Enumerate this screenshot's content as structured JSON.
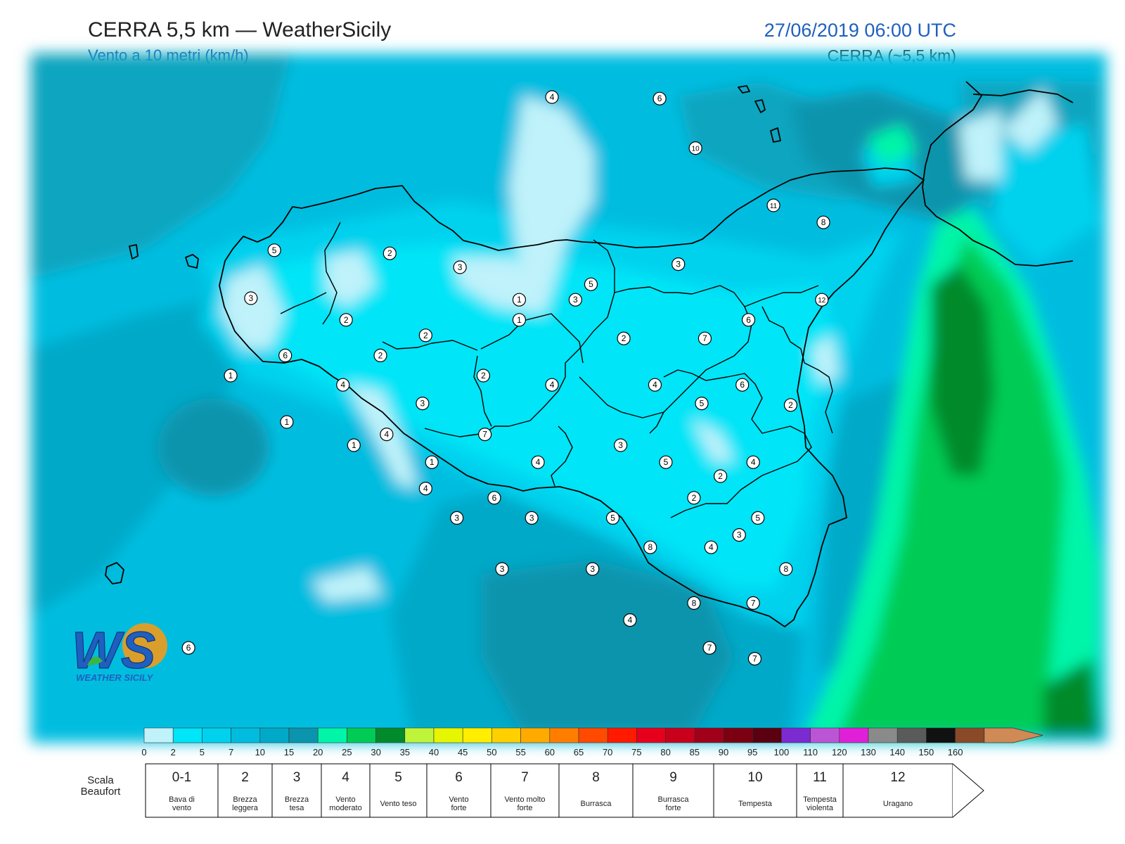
{
  "header": {
    "title": "CERRA 5,5 km — WeatherSicily",
    "subtitle": "Vento a 10 metri (km/h)",
    "datetime": "27/06/2019 06:00 UTC",
    "model": "CERRA (~5,5 km)"
  },
  "logo": {
    "text": "WEATHER SICILY",
    "letters": "WS"
  },
  "colors": {
    "c0": "#bff2fa",
    "c2": "#00e5f7",
    "c5": "#00d2ee",
    "c7": "#00bde0",
    "c10": "#00a9c8",
    "c15": "#0a94ad",
    "c20": "#00f5a8",
    "c25": "#00cc55",
    "c30": "#008a2c"
  },
  "legend": {
    "ticks": [
      "0",
      "2",
      "5",
      "7",
      "10",
      "15",
      "20",
      "25",
      "30",
      "35",
      "40",
      "45",
      "50",
      "55",
      "60",
      "65",
      "70",
      "75",
      "80",
      "85",
      "90",
      "95",
      "100",
      "110",
      "120",
      "130",
      "140",
      "150",
      "160"
    ],
    "bins": [
      "#bff2fa",
      "#00e5f7",
      "#00d2ee",
      "#00bde0",
      "#00a9c8",
      "#0a94ad",
      "#00f5a8",
      "#00cc55",
      "#008a2c",
      "#bef53a",
      "#e6f500",
      "#ffee00",
      "#ffd000",
      "#ffaa00",
      "#ff7e00",
      "#ff4a00",
      "#ff1a00",
      "#e6001c",
      "#c8001c",
      "#a0001a",
      "#7a0012",
      "#5a0010",
      "#7b2bd0",
      "#bb55d6",
      "#e020d8",
      "#8a8a8a",
      "#5a5a5a",
      "#111111",
      "#8a4a28",
      "#cf8a55"
    ],
    "scale_label_1": "Scala",
    "scale_label_2": "Beaufort",
    "beaufort": [
      {
        "num": "0-1",
        "l1": "Bava di",
        "l2": "vento"
      },
      {
        "num": "2",
        "l1": "Brezza",
        "l2": "leggera"
      },
      {
        "num": "3",
        "l1": "Brezza",
        "l2": "tesa"
      },
      {
        "num": "4",
        "l1": "Vento",
        "l2": "moderato"
      },
      {
        "num": "5",
        "l1": "Vento teso",
        "l2": ""
      },
      {
        "num": "6",
        "l1": "Vento",
        "l2": "forte"
      },
      {
        "num": "7",
        "l1": "Vento molto",
        "l2": "forte"
      },
      {
        "num": "8",
        "l1": "Burrasca",
        "l2": ""
      },
      {
        "num": "9",
        "l1": "Burrasca",
        "l2": "forte"
      },
      {
        "num": "10",
        "l1": "Tempesta",
        "l2": ""
      },
      {
        "num": "11",
        "l1": "Tempesta",
        "l2": "violenta"
      },
      {
        "num": "12",
        "l1": "Uragano",
        "l2": ""
      }
    ]
  },
  "stations": [
    {
      "v": "4",
      "lon": 14.26,
      "lat": 39.25
    },
    {
      "v": "6",
      "lon": 14.95,
      "lat": 39.24
    },
    {
      "v": "10",
      "lon": 15.18,
      "lat": 38.92
    },
    {
      "v": "11",
      "lon": 15.68,
      "lat": 38.55
    },
    {
      "v": "8",
      "lon": 16.0,
      "lat": 38.44
    },
    {
      "v": "5",
      "lon": 12.48,
      "lat": 38.26
    },
    {
      "v": "2",
      "lon": 13.22,
      "lat": 38.24
    },
    {
      "v": "3",
      "lon": 13.67,
      "lat": 38.15
    },
    {
      "v": "3",
      "lon": 15.07,
      "lat": 38.17
    },
    {
      "v": "5",
      "lon": 14.51,
      "lat": 38.04
    },
    {
      "v": "3",
      "lon": 12.33,
      "lat": 37.95
    },
    {
      "v": "1",
      "lon": 14.05,
      "lat": 37.94
    },
    {
      "v": "3",
      "lon": 14.41,
      "lat": 37.94
    },
    {
      "v": "12",
      "lon": 15.99,
      "lat": 37.94
    },
    {
      "v": "2",
      "lon": 12.94,
      "lat": 37.81
    },
    {
      "v": "1",
      "lon": 14.05,
      "lat": 37.81
    },
    {
      "v": "6",
      "lon": 15.52,
      "lat": 37.81
    },
    {
      "v": "2",
      "lon": 13.45,
      "lat": 37.71
    },
    {
      "v": "2",
      "lon": 14.72,
      "lat": 37.69
    },
    {
      "v": "7",
      "lon": 15.24,
      "lat": 37.69
    },
    {
      "v": "6",
      "lon": 12.55,
      "lat": 37.58
    },
    {
      "v": "2",
      "lon": 13.16,
      "lat": 37.58
    },
    {
      "v": "1",
      "lon": 12.2,
      "lat": 37.45
    },
    {
      "v": "2",
      "lon": 13.82,
      "lat": 37.45
    },
    {
      "v": "4",
      "lon": 12.92,
      "lat": 37.39
    },
    {
      "v": "4",
      "lon": 14.26,
      "lat": 37.39
    },
    {
      "v": "4",
      "lon": 14.92,
      "lat": 37.39
    },
    {
      "v": "6",
      "lon": 15.48,
      "lat": 37.39
    },
    {
      "v": "3",
      "lon": 13.43,
      "lat": 37.27
    },
    {
      "v": "5",
      "lon": 15.22,
      "lat": 37.27
    },
    {
      "v": "2",
      "lon": 15.79,
      "lat": 37.26
    },
    {
      "v": "1",
      "lon": 12.56,
      "lat": 37.15
    },
    {
      "v": "4",
      "lon": 13.2,
      "lat": 37.07
    },
    {
      "v": "7",
      "lon": 13.83,
      "lat": 37.07
    },
    {
      "v": "1",
      "lon": 12.99,
      "lat": 37.0
    },
    {
      "v": "3",
      "lon": 14.7,
      "lat": 37.0
    },
    {
      "v": "1",
      "lon": 13.49,
      "lat": 36.89
    },
    {
      "v": "4",
      "lon": 14.17,
      "lat": 36.89
    },
    {
      "v": "5",
      "lon": 14.99,
      "lat": 36.89
    },
    {
      "v": "4",
      "lon": 15.55,
      "lat": 36.89
    },
    {
      "v": "2",
      "lon": 15.34,
      "lat": 36.8
    },
    {
      "v": "4",
      "lon": 13.45,
      "lat": 36.72
    },
    {
      "v": "6",
      "lon": 13.89,
      "lat": 36.66
    },
    {
      "v": "2",
      "lon": 15.17,
      "lat": 36.66
    },
    {
      "v": "3",
      "lon": 13.65,
      "lat": 36.53
    },
    {
      "v": "3",
      "lon": 14.13,
      "lat": 36.53
    },
    {
      "v": "5",
      "lon": 14.65,
      "lat": 36.53
    },
    {
      "v": "5",
      "lon": 15.58,
      "lat": 36.53
    },
    {
      "v": "3",
      "lon": 15.46,
      "lat": 36.42
    },
    {
      "v": "8",
      "lon": 14.89,
      "lat": 36.34
    },
    {
      "v": "4",
      "lon": 15.28,
      "lat": 36.34
    },
    {
      "v": "3",
      "lon": 13.94,
      "lat": 36.2
    },
    {
      "v": "3",
      "lon": 14.52,
      "lat": 36.2
    },
    {
      "v": "8",
      "lon": 15.76,
      "lat": 36.2
    },
    {
      "v": "7",
      "lon": 15.55,
      "lat": 35.98
    },
    {
      "v": "8",
      "lon": 15.17,
      "lat": 35.98
    },
    {
      "v": "4",
      "lon": 14.76,
      "lat": 35.87
    },
    {
      "v": "7",
      "lon": 15.27,
      "lat": 35.69
    },
    {
      "v": "7",
      "lon": 15.56,
      "lat": 35.62
    },
    {
      "v": "6",
      "lon": 11.93,
      "lat": 35.69
    }
  ]
}
